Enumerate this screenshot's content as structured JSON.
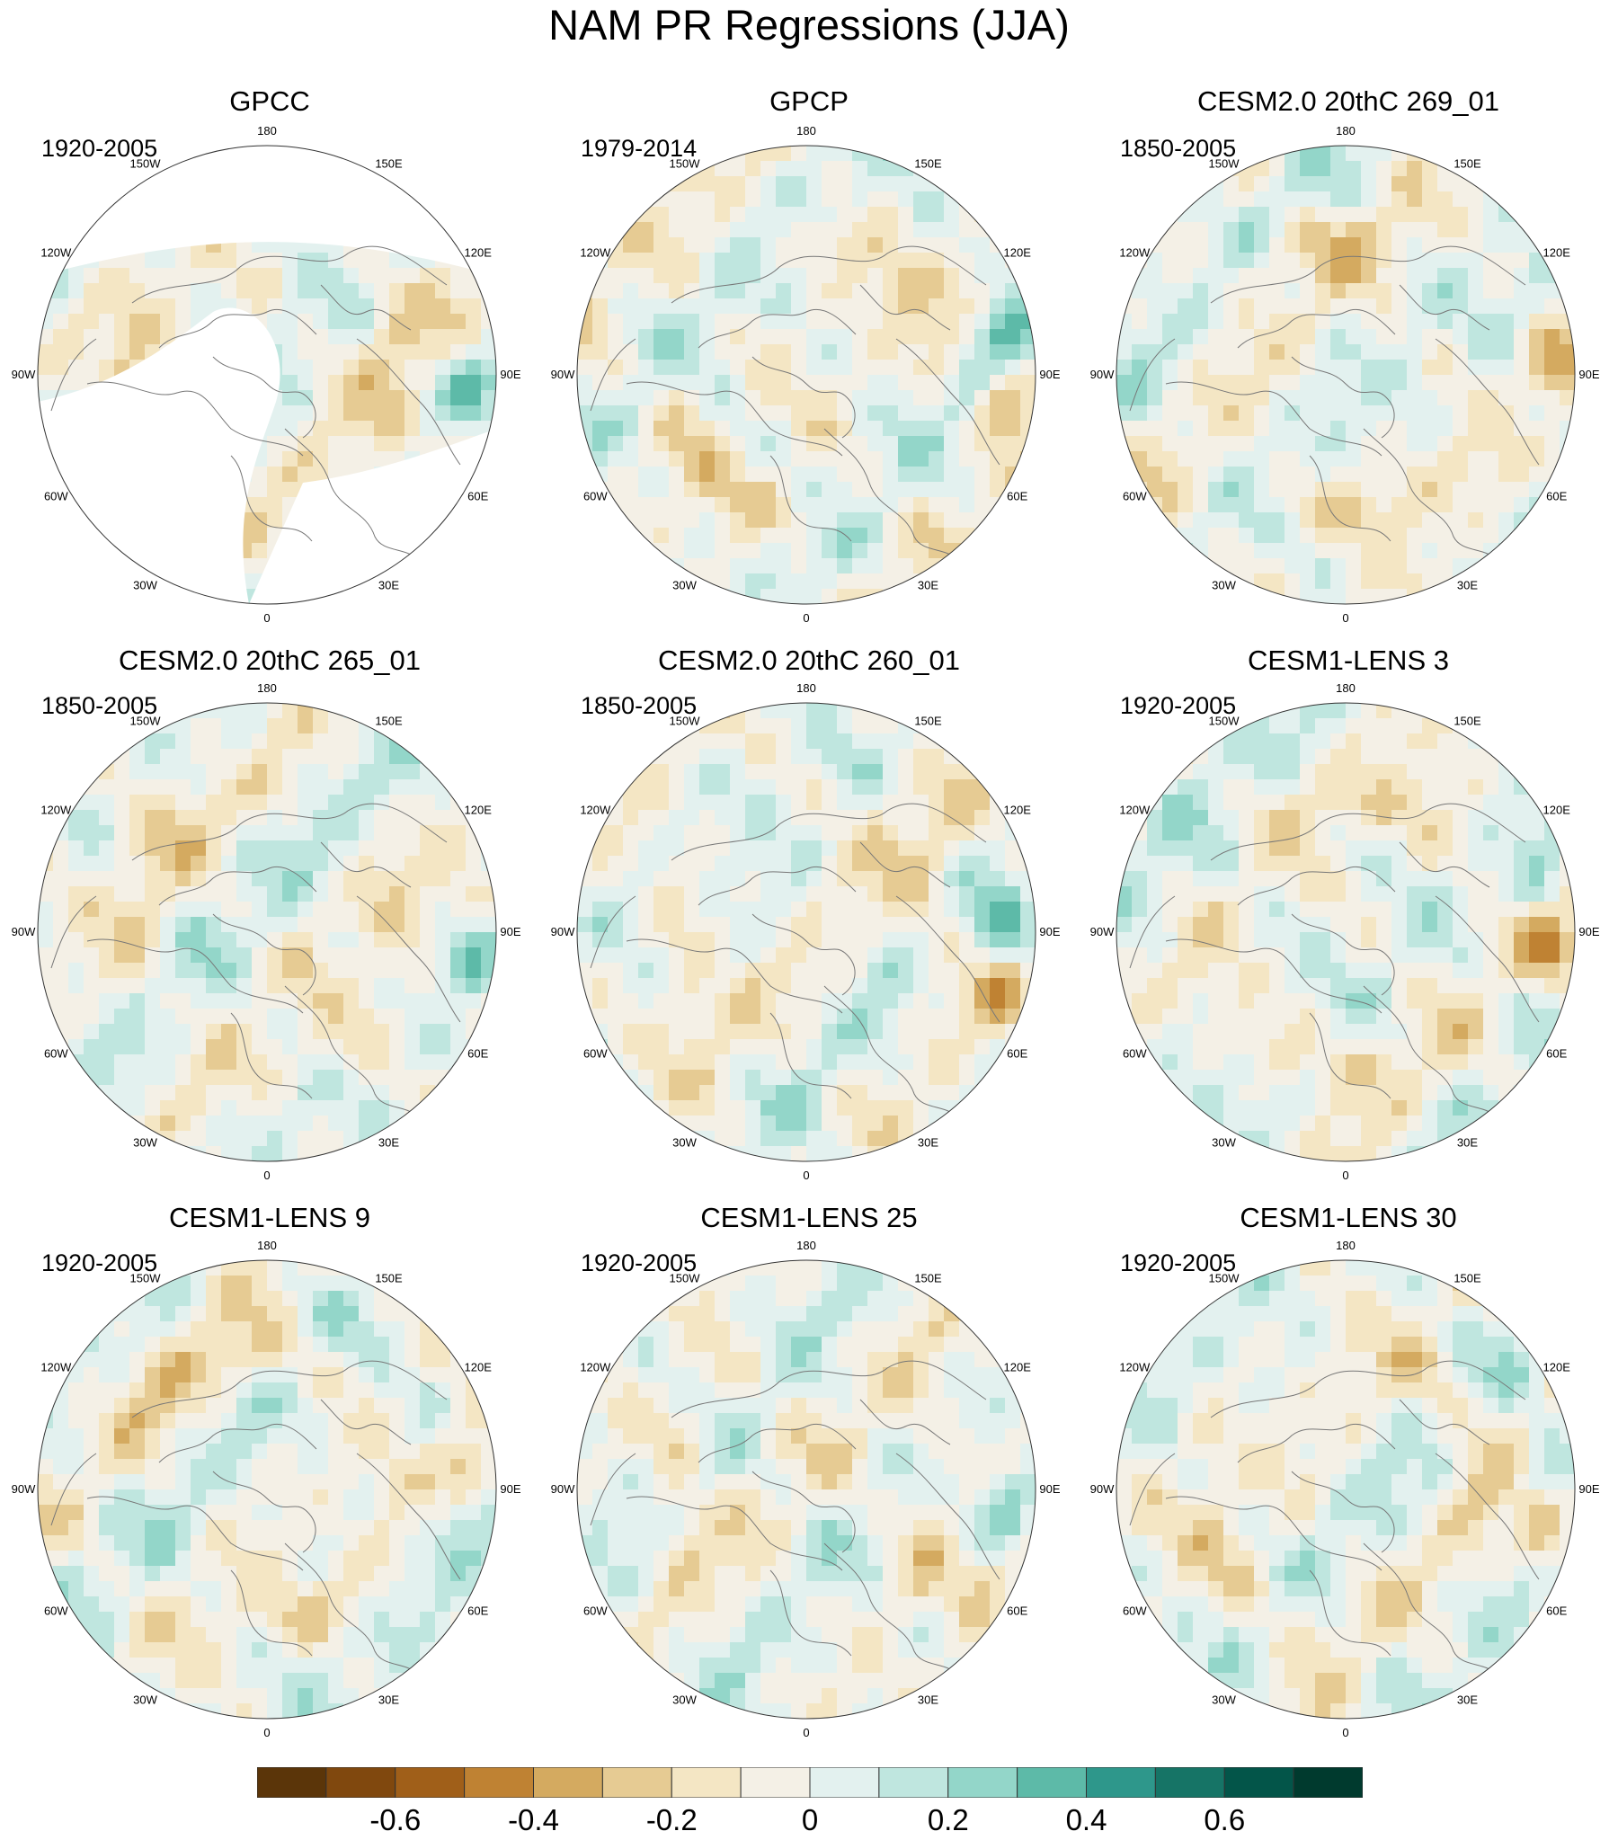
{
  "title": "NAM PR Regressions (JJA)",
  "palette": {
    "colors": [
      "#5b3509",
      "#80480e",
      "#a05f19",
      "#bf8233",
      "#d4aa60",
      "#e6cb93",
      "#f4e6c4",
      "#f4f0e6",
      "#e3f1ef",
      "#bfe6df",
      "#93d6c9",
      "#5dbaa8",
      "#2e978b",
      "#167466",
      "#035549",
      "#003a2e"
    ],
    "land_outline": "#777777",
    "mask": "#ffffff"
  },
  "longitude_labels": [
    "180",
    "150E",
    "120E",
    "90E",
    "60E",
    "30E",
    "0",
    "30W",
    "60W",
    "90W",
    "120W",
    "150W"
  ],
  "panels": [
    {
      "title": "GPCC",
      "period": "1920-2005"
    },
    {
      "title": "GPCP",
      "period": "1979-2014"
    },
    {
      "title": "CESM2.0 20thC 269_01",
      "period": "1850-2005"
    },
    {
      "title": "CESM2.0 20thC 265_01",
      "period": "1850-2005"
    },
    {
      "title": "CESM2.0 20thC 260_01",
      "period": "1850-2005"
    },
    {
      "title": "CESM1-LENS 3",
      "period": "1920-2005"
    },
    {
      "title": "CESM1-LENS 9",
      "period": "1920-2005"
    },
    {
      "title": "CESM1-LENS 25",
      "period": "1920-2005"
    },
    {
      "title": "CESM1-LENS 30",
      "period": "1920-2005"
    }
  ],
  "colorbar": {
    "labels": [
      "-0.6",
      "-0.4",
      "-0.2",
      "0",
      "0.2",
      "0.4",
      "0.6"
    ],
    "label_values": [
      -0.6,
      -0.4,
      -0.2,
      0,
      0.2,
      0.4,
      0.6
    ],
    "min": -0.8,
    "max": 0.8,
    "n_bins": 16
  }
}
